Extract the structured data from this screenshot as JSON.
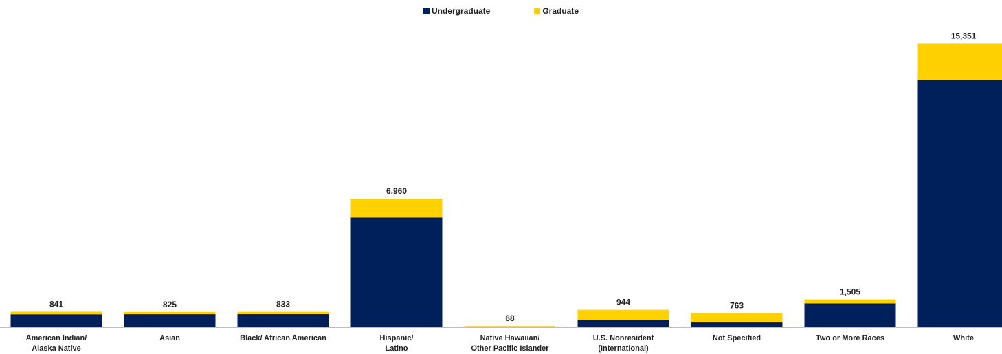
{
  "legend": {
    "undergraduate_label": "Undergraduate",
    "graduate_label": "Graduate"
  },
  "colors": {
    "undergraduate": "#00205B",
    "graduate": "#FFD100",
    "text": "#222222",
    "axis": "#BFBFBF"
  },
  "chart_data": {
    "type": "bar",
    "stacked": true,
    "legend_position": "top-center",
    "grid": false,
    "ylim": [
      0,
      16000
    ],
    "categories": [
      [
        "American Indian/",
        "Alaska Native"
      ],
      [
        "Asian"
      ],
      [
        "Black/ African American"
      ],
      [
        "Hispanic/",
        "Latino"
      ],
      [
        "Native Hawaiian/",
        "Other Pacific Islander"
      ],
      [
        "U.S. Nonresident",
        "(International)"
      ],
      [
        "Not Specified"
      ],
      [
        "Two or More Races"
      ],
      [
        "White"
      ]
    ],
    "series": [
      {
        "name": "Undergraduate",
        "values": [
          700,
          705,
          710,
          5940,
          40,
          400,
          260,
          1290,
          13380
        ]
      },
      {
        "name": "Graduate",
        "values": [
          141,
          120,
          123,
          1020,
          28,
          544,
          503,
          215,
          1971
        ]
      }
    ],
    "totals": [
      841,
      825,
      833,
      6960,
      68,
      944,
      763,
      1505,
      15351
    ],
    "total_labels": [
      "841",
      "825",
      "833",
      "6,960",
      "68",
      "944",
      "763",
      "1,505",
      "15,351"
    ]
  }
}
